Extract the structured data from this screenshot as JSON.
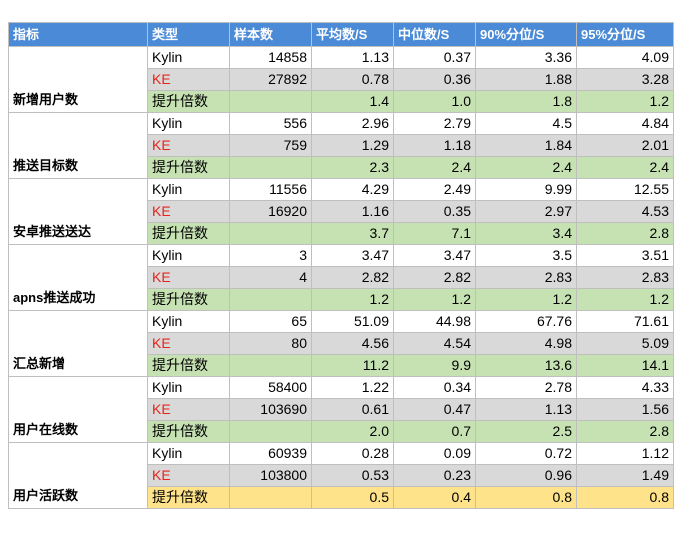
{
  "table": {
    "headers": [
      "指标",
      "类型",
      "样本数",
      "平均数/S",
      "中位数/S",
      "90%分位/S",
      "95%分位/S"
    ],
    "groups": [
      {
        "metric": "新增用户数",
        "rows": [
          {
            "type": "Kylin",
            "samples": "14858",
            "avg": "1.13",
            "median": "0.37",
            "p90": "3.36",
            "p95": "4.09"
          },
          {
            "type": "KE",
            "samples": "27892",
            "avg": "0.78",
            "median": "0.36",
            "p90": "1.88",
            "p95": "3.28"
          },
          {
            "type": "提升倍数",
            "samples": "",
            "avg": "1.4",
            "median": "1.0",
            "p90": "1.8",
            "p95": "1.2"
          }
        ]
      },
      {
        "metric": "推送目标数",
        "rows": [
          {
            "type": "Kylin",
            "samples": "556",
            "avg": "2.96",
            "median": "2.79",
            "p90": "4.5",
            "p95": "4.84"
          },
          {
            "type": "KE",
            "samples": "759",
            "avg": "1.29",
            "median": "1.18",
            "p90": "1.84",
            "p95": "2.01"
          },
          {
            "type": "提升倍数",
            "samples": "",
            "avg": "2.3",
            "median": "2.4",
            "p90": "2.4",
            "p95": "2.4"
          }
        ]
      },
      {
        "metric": "安卓推送送达",
        "rows": [
          {
            "type": "Kylin",
            "samples": "11556",
            "avg": "4.29",
            "median": "2.49",
            "p90": "9.99",
            "p95": "12.55"
          },
          {
            "type": "KE",
            "samples": "16920",
            "avg": "1.16",
            "median": "0.35",
            "p90": "2.97",
            "p95": "4.53"
          },
          {
            "type": "提升倍数",
            "samples": "",
            "avg": "3.7",
            "median": "7.1",
            "p90": "3.4",
            "p95": "2.8"
          }
        ]
      },
      {
        "metric": "apns推送成功",
        "rows": [
          {
            "type": "Kylin",
            "samples": "3",
            "avg": "3.47",
            "median": "3.47",
            "p90": "3.5",
            "p95": "3.51"
          },
          {
            "type": "KE",
            "samples": "4",
            "avg": "2.82",
            "median": "2.82",
            "p90": "2.83",
            "p95": "2.83"
          },
          {
            "type": "提升倍数",
            "samples": "",
            "avg": "1.2",
            "median": "1.2",
            "p90": "1.2",
            "p95": "1.2"
          }
        ]
      },
      {
        "metric": "汇总新增",
        "rows": [
          {
            "type": "Kylin",
            "samples": "65",
            "avg": "51.09",
            "median": "44.98",
            "p90": "67.76",
            "p95": "71.61"
          },
          {
            "type": "KE",
            "samples": "80",
            "avg": "4.56",
            "median": "4.54",
            "p90": "4.98",
            "p95": "5.09"
          },
          {
            "type": "提升倍数",
            "samples": "",
            "avg": "11.2",
            "median": "9.9",
            "p90": "13.6",
            "p95": "14.1"
          }
        ]
      },
      {
        "metric": "用户在线数",
        "rows": [
          {
            "type": "Kylin",
            "samples": "58400",
            "avg": "1.22",
            "median": "0.34",
            "p90": "2.78",
            "p95": "4.33"
          },
          {
            "type": "KE",
            "samples": "103690",
            "avg": "0.61",
            "median": "0.47",
            "p90": "1.13",
            "p95": "1.56"
          },
          {
            "type": "提升倍数",
            "samples": "",
            "avg": "2.0",
            "median": "0.7",
            "p90": "2.5",
            "p95": "2.8"
          }
        ]
      },
      {
        "metric": "用户活跃数",
        "highlight": "yellow",
        "rows": [
          {
            "type": "Kylin",
            "samples": "60939",
            "avg": "0.28",
            "median": "0.09",
            "p90": "0.72",
            "p95": "1.12"
          },
          {
            "type": "KE",
            "samples": "103800",
            "avg": "0.53",
            "median": "0.23",
            "p90": "0.96",
            "p95": "1.49"
          },
          {
            "type": "提升倍数",
            "samples": "",
            "avg": "0.5",
            "median": "0.4",
            "p90": "0.8",
            "p95": "0.8"
          }
        ]
      }
    ]
  },
  "colors": {
    "header_bg": "#4a8ad6",
    "ke_row_bg": "#d9d9d9",
    "ke_label": "#e8231c",
    "gain_row_bg": "#c6e2b3",
    "gain_row_highlight_bg": "#ffe38a"
  }
}
